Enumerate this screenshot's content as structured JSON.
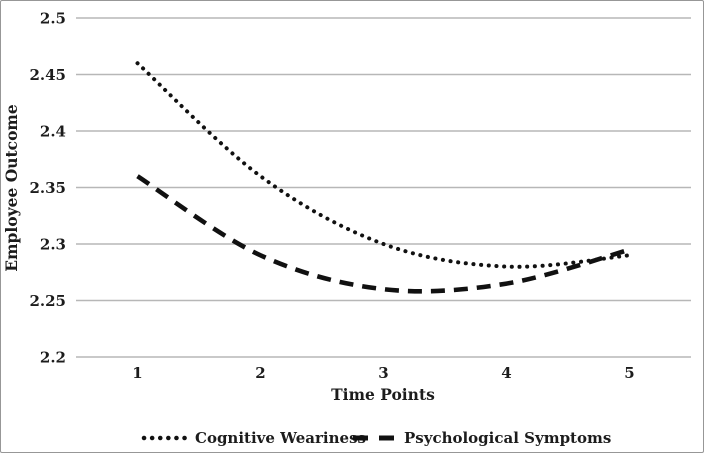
{
  "chart_data": {
    "type": "line",
    "title": "",
    "xlabel": "Time Points",
    "ylabel": "Employee Outcome",
    "categories": [
      "1",
      "2",
      "3",
      "4",
      "5"
    ],
    "ylim": [
      2.2,
      2.5
    ],
    "y_tick_values": [
      2.2,
      2.25,
      2.3,
      2.35,
      2.4,
      2.45,
      2.5
    ],
    "y_tick_labels": [
      "2.2",
      "2.25",
      "2.3",
      "2.35",
      "2.4",
      "2.45",
      "2.5"
    ],
    "grid": "horizontal",
    "legend_position": "bottom",
    "line_smoothing": true,
    "series": [
      {
        "name": "Cognitive Weariness",
        "line_style": "dotted",
        "color": "#111111",
        "values": [
          2.46,
          2.36,
          2.3,
          2.28,
          2.29
        ]
      },
      {
        "name": "Psychological Symptoms",
        "line_style": "dashed",
        "color": "#111111",
        "values": [
          2.36,
          2.29,
          2.26,
          2.265,
          2.295
        ]
      }
    ],
    "colors": {
      "line": "#111111",
      "gridline": "#b7b7b7",
      "text": "#1c1c1c",
      "background": "#ffffff",
      "frame_border": "#979797"
    }
  }
}
